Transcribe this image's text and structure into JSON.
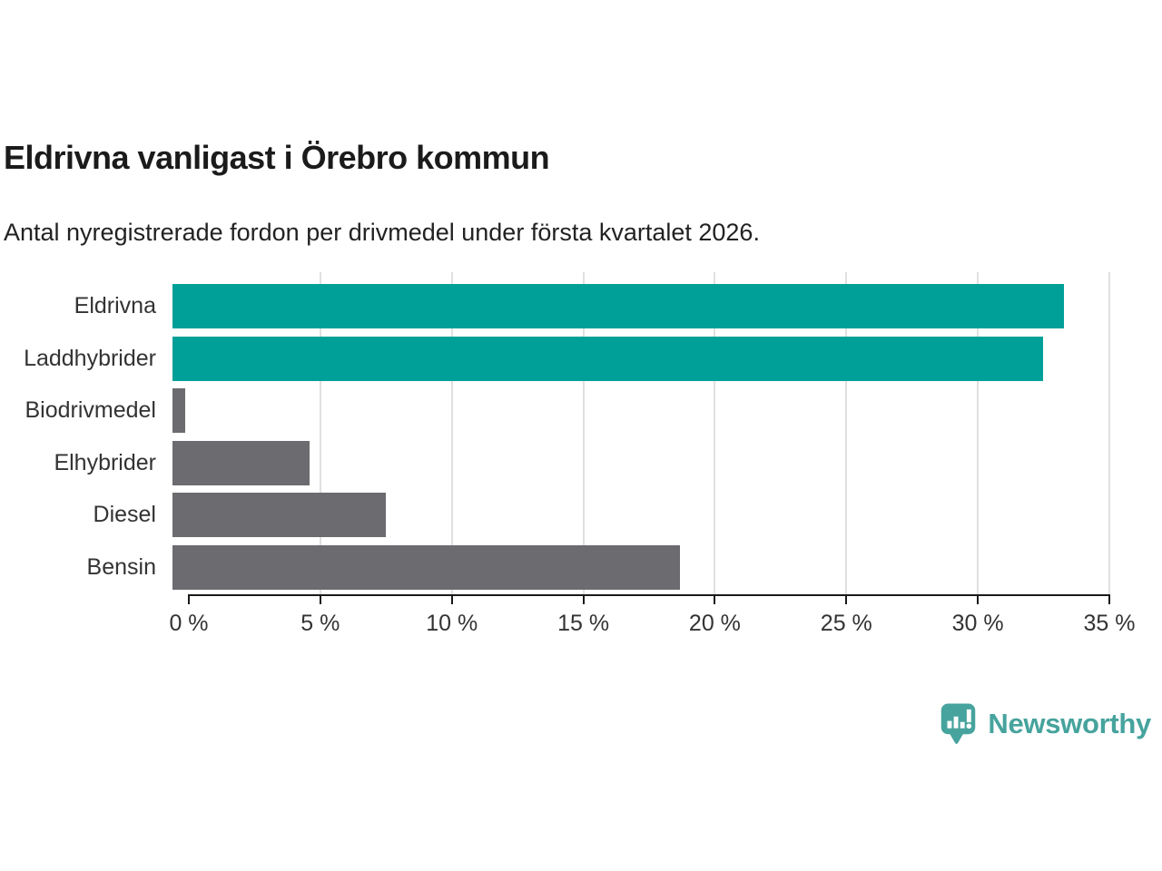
{
  "header": {
    "title": "Eldrivna vanligast i Örebro kommun",
    "subtitle": "Antal nyregistrerade fordon per drivmedel under första kvartalet 2026."
  },
  "chart_data": {
    "type": "bar",
    "orientation": "horizontal",
    "title": "Eldrivna vanligast i Örebro kommun",
    "subtitle": "Antal nyregistrerade fordon per drivmedel under första kvartalet 2026.",
    "categories": [
      "Eldrivna",
      "Laddhybrider",
      "Biodrivmedel",
      "Elhybrider",
      "Diesel",
      "Bensin"
    ],
    "values": [
      33.9,
      33.1,
      0.5,
      5.2,
      8.1,
      19.3
    ],
    "unit": "%",
    "bar_colors": [
      "#00a099",
      "#00a099",
      "#6b6b70",
      "#6b6b70",
      "#6b6b70",
      "#6b6b70"
    ],
    "xlabel": "",
    "ylabel": "",
    "xlim": [
      0,
      35
    ],
    "x_ticks": [
      0,
      5,
      10,
      15,
      20,
      25,
      30,
      35
    ],
    "x_tick_labels": [
      "0 %",
      "5 %",
      "10 %",
      "15 %",
      "20 %",
      "25 %",
      "30 %",
      "35 %"
    ],
    "grid": "vertical",
    "legend_position": "none"
  },
  "branding": {
    "logo_text": "Newsworthy",
    "logo_icon": "bar-chart-speech-bubble-icon",
    "logo_color": "#46a39d"
  },
  "colors": {
    "accent_teal": "#00a099",
    "neutral_gray": "#6b6b70",
    "gridline": "#e0e0e0",
    "axis": "#1a1a1a",
    "text": "#333333"
  }
}
